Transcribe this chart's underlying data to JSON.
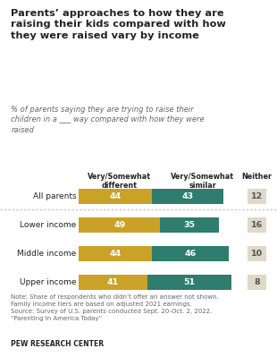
{
  "title": "Parents’ approaches to how they are\nraising their kids compared with how\nthey were raised vary by income",
  "subtitle": "% of parents saying they are trying to raise their\nchildren in a ___ way compared with how they were\nraised",
  "categories": [
    "All parents",
    "Lower income",
    "Middle income",
    "Upper income"
  ],
  "different_values": [
    44,
    49,
    44,
    41
  ],
  "similar_values": [
    43,
    35,
    46,
    51
  ],
  "neither_values": [
    12,
    16,
    10,
    8
  ],
  "color_different": "#C9A227",
  "color_similar": "#2E7D6E",
  "color_neither": "#E0D8C8",
  "col_header_different": "Very/Somewhat\ndifferent",
  "col_header_similar": "Very/Somewhat\nsimilar",
  "col_header_neither": "Neither",
  "note": "Note: Share of respondents who didn’t offer an answer not shown.\nFamily income tiers are based on adjusted 2021 earnings.\nSource: Survey of U.S. parents conducted Sept. 20-Oct. 2, 2022.\n“Parenting in America Today”",
  "footer": "PEW RESEARCH CENTER",
  "bg_color": "#FFFFFF",
  "text_color": "#222222",
  "subtitle_color": "#666666",
  "note_color": "#666666",
  "bar_text_color": "#FFFFFF",
  "neither_text_color": "#555555",
  "separator_color": "#BBBBBB"
}
